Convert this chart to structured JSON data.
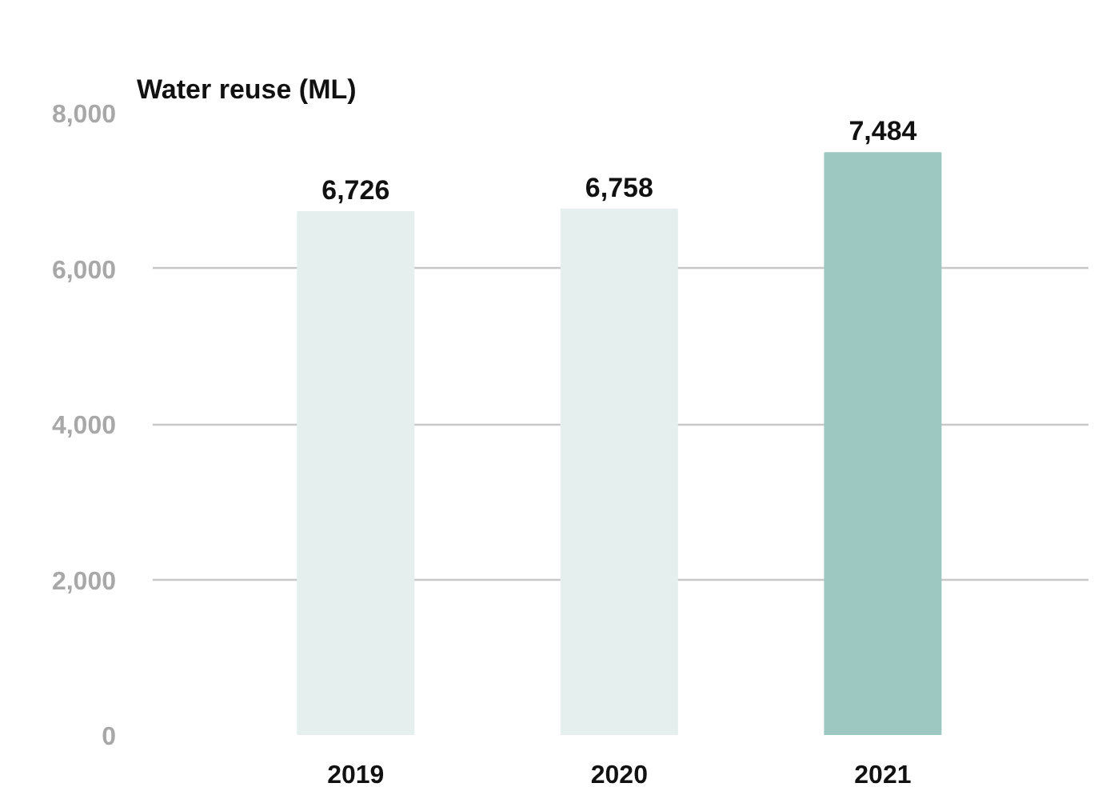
{
  "chart_data": {
    "type": "bar",
    "title": "Water reuse (ML)",
    "categories": [
      "2019",
      "2020",
      "2021"
    ],
    "values": [
      6726,
      6758,
      7484
    ],
    "colors": [
      "#e5f0ee",
      "#e5f0ee",
      "#9dc8c1"
    ],
    "ylim": [
      0,
      8000
    ],
    "yticks": [
      {
        "value": 0,
        "label": "0"
      },
      {
        "value": 2000,
        "label": "2,000"
      },
      {
        "value": 4000,
        "label": "4,000"
      },
      {
        "value": 6000,
        "label": "6,000"
      },
      {
        "value": 8000,
        "label": "8,000"
      }
    ],
    "value_labels": [
      "6,726",
      "6,758",
      "7,484"
    ],
    "grid": "y"
  }
}
